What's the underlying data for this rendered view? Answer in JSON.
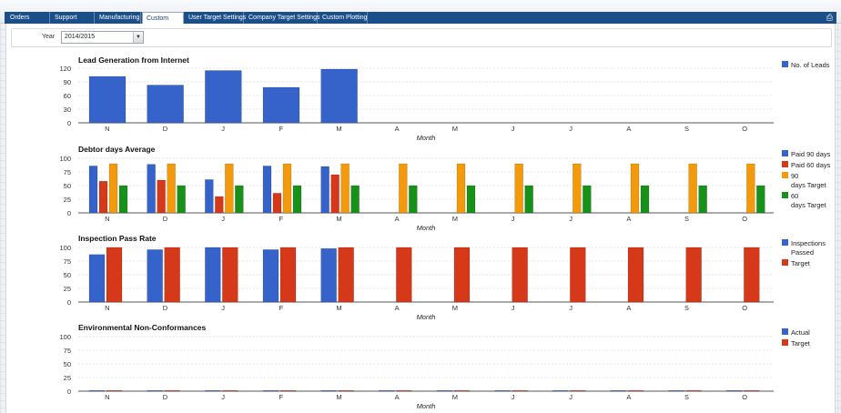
{
  "tabs": [
    {
      "label": "Orders",
      "active": false
    },
    {
      "label": "Support",
      "active": false
    },
    {
      "label": "Manufacturing",
      "active": false
    },
    {
      "label": "Custom",
      "active": true
    },
    {
      "label": "User Target Settings",
      "active": false
    },
    {
      "label": "Company Target Settings",
      "active": false
    },
    {
      "label": "Custom Plotting",
      "active": false
    }
  ],
  "toolbar": {
    "print_icon": "printer-icon"
  },
  "filter": {
    "year_label": "Year",
    "year_value": "2014/2015"
  },
  "colors": {
    "blue": "#3563c9",
    "red": "#d6381a",
    "orange": "#f29a0c",
    "green": "#17911a"
  },
  "chart_data": [
    {
      "type": "bar",
      "title": "Lead Generation from Internet",
      "xlabel": "Month",
      "ylabel": "",
      "categories": [
        "N",
        "D",
        "J",
        "F",
        "M",
        "A",
        "M",
        "J",
        "J",
        "A",
        "S",
        "O"
      ],
      "ylim": [
        0,
        120
      ],
      "yticks": [
        0,
        30,
        60,
        90,
        120
      ],
      "legend_position": "right",
      "series": [
        {
          "name": "No. of Leads",
          "color": "#3563c9",
          "values": [
            102,
            83,
            115,
            78,
            118,
            null,
            null,
            null,
            null,
            null,
            null,
            null
          ]
        }
      ]
    },
    {
      "type": "bar",
      "title": "Debtor days Average",
      "xlabel": "Month",
      "ylabel": "",
      "categories": [
        "N",
        "D",
        "J",
        "F",
        "M",
        "A",
        "M",
        "J",
        "J",
        "A",
        "S",
        "O"
      ],
      "ylim": [
        0,
        100
      ],
      "yticks": [
        0,
        25,
        50,
        75,
        100
      ],
      "legend_position": "right",
      "series": [
        {
          "name": "Paid 90 days",
          "color": "#3563c9",
          "values": [
            86,
            89,
            61,
            86,
            85,
            null,
            null,
            null,
            null,
            null,
            null,
            null
          ]
        },
        {
          "name": "Paid 60 days",
          "color": "#d6381a",
          "values": [
            58,
            60,
            30,
            36,
            70,
            null,
            null,
            null,
            null,
            null,
            null,
            null
          ]
        },
        {
          "name": "90 days Target",
          "color": "#f29a0c",
          "values": [
            90,
            90,
            90,
            90,
            90,
            90,
            90,
            90,
            90,
            90,
            90,
            90
          ]
        },
        {
          "name": "60 days Target",
          "color": "#17911a",
          "values": [
            50,
            50,
            50,
            50,
            50,
            50,
            50,
            50,
            50,
            50,
            50,
            50
          ]
        }
      ]
    },
    {
      "type": "bar",
      "title": "Inspection Pass Rate",
      "xlabel": "Month",
      "ylabel": "",
      "categories": [
        "N",
        "D",
        "J",
        "F",
        "M",
        "A",
        "M",
        "J",
        "J",
        "A",
        "S",
        "O"
      ],
      "ylim": [
        0,
        100
      ],
      "yticks": [
        0,
        25,
        50,
        75,
        100
      ],
      "legend_position": "right",
      "series": [
        {
          "name": "Inspections Passed",
          "color": "#3563c9",
          "values": [
            87,
            96,
            100,
            96,
            98,
            null,
            null,
            null,
            null,
            null,
            null,
            null
          ]
        },
        {
          "name": "Target",
          "color": "#d6381a",
          "values": [
            100,
            100,
            100,
            100,
            100,
            100,
            100,
            100,
            100,
            100,
            100,
            100
          ]
        }
      ]
    },
    {
      "type": "bar",
      "title": "Environmental Non-Conformances",
      "xlabel": "Month",
      "ylabel": "",
      "categories": [
        "N",
        "D",
        "J",
        "F",
        "M",
        "A",
        "M",
        "J",
        "J",
        "A",
        "S",
        "O"
      ],
      "ylim": [
        0,
        100
      ],
      "yticks": [
        0,
        25,
        50,
        75,
        100
      ],
      "legend_position": "right",
      "series": [
        {
          "name": "Actual",
          "color": "#3563c9",
          "values": [
            0,
            0,
            0,
            0,
            0,
            0,
            0,
            0,
            0,
            0,
            0,
            0
          ]
        },
        {
          "name": "Target",
          "color": "#d6381a",
          "values": [
            1,
            1,
            1,
            1,
            1,
            1,
            1,
            1,
            1,
            1,
            1,
            1
          ]
        }
      ]
    }
  ]
}
